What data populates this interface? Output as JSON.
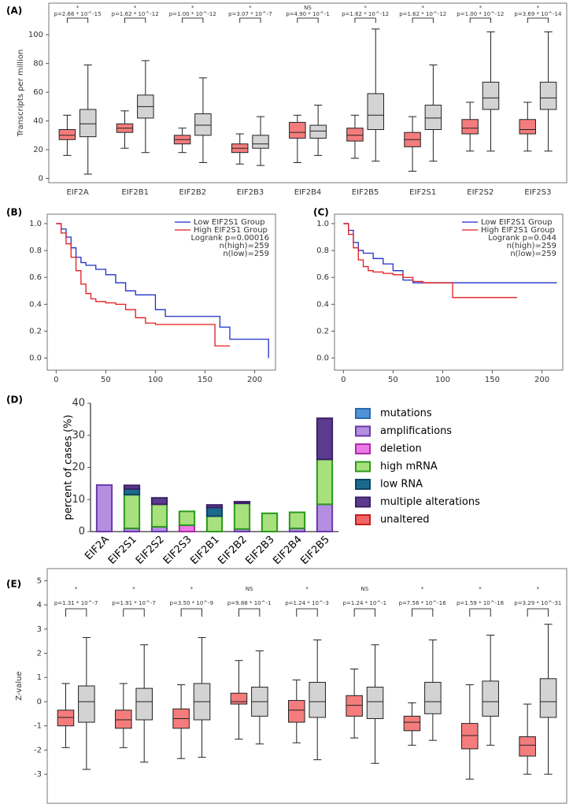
{
  "chart_data": [
    {
      "type": "box",
      "panel": "(A)",
      "ylabel": "Transcripts per million",
      "categories": [
        "EIF2A",
        "EIF2B1",
        "EIF2B2",
        "EIF2B3",
        "EIF2B4",
        "EIF2B5",
        "EIF2S1",
        "EIF2S2",
        "EIF2S3"
      ],
      "annotations": [
        "p=2.66 * 10^-15",
        "p=1.62 * 10^-12",
        "p=1.00 * 10^-12",
        "p=3.07 * 10^-7",
        "p=4.90 * 10^-1",
        "p=1.62 * 10^-12",
        "p=1.62 * 10^-12",
        "p=1.00 * 10^-12",
        "p=3.69 * 10^-14"
      ],
      "significance": [
        "*",
        "*",
        "*",
        "*",
        "NS",
        "*",
        "*",
        "*",
        "*"
      ],
      "series": [
        {
          "color": "#f47c7c",
          "min": [
            16,
            21,
            18,
            10,
            11,
            14,
            5,
            19,
            19
          ],
          "q1": [
            27,
            32,
            24,
            18,
            28,
            26,
            22,
            31,
            31
          ],
          "median": [
            30,
            35,
            27,
            21,
            32,
            30,
            27,
            35,
            34
          ],
          "q3": [
            34,
            38,
            30,
            24,
            39,
            35,
            32,
            41,
            41
          ],
          "max": [
            44,
            47,
            35,
            31,
            44,
            44,
            43,
            53,
            53
          ]
        },
        {
          "color": "#d3d3d3",
          "min": [
            3,
            18,
            11,
            9,
            16,
            12,
            12,
            19,
            19
          ],
          "q1": [
            29,
            42,
            30,
            21,
            28,
            34,
            34,
            48,
            48
          ],
          "median": [
            38,
            50,
            37,
            24,
            33,
            44,
            42,
            56,
            56
          ],
          "q3": [
            48,
            58,
            45,
            30,
            37,
            59,
            51,
            67,
            67
          ],
          "max": [
            79,
            82,
            70,
            43,
            51,
            104,
            79,
            102,
            102
          ]
        }
      ],
      "ylim": [
        -3,
        122
      ],
      "yticks": [
        0,
        20,
        40,
        60,
        80,
        100
      ]
    },
    {
      "type": "line",
      "step": true,
      "panel": "(B)",
      "series": [
        {
          "name": "Low EIF2S1 Group",
          "color": "#1f2fc8",
          "x": [
            0,
            5,
            10,
            15,
            20,
            25,
            30,
            40,
            50,
            60,
            70,
            80,
            90,
            100,
            110,
            130,
            160,
            165,
            175,
            213,
            214
          ],
          "values": [
            1,
            0.96,
            0.9,
            0.82,
            0.75,
            0.71,
            0.69,
            0.66,
            0.62,
            0.56,
            0.5,
            0.47,
            0.47,
            0.36,
            0.31,
            0.31,
            0.31,
            0.23,
            0.14,
            0.14,
            0
          ]
        },
        {
          "name": "High EIF2S1 Group",
          "color": "#e41a1c",
          "x": [
            0,
            5,
            10,
            15,
            20,
            25,
            30,
            35,
            40,
            50,
            60,
            70,
            80,
            90,
            100,
            120,
            140,
            155,
            160,
            175
          ],
          "values": [
            1,
            0.93,
            0.85,
            0.75,
            0.65,
            0.55,
            0.48,
            0.44,
            0.42,
            0.41,
            0.4,
            0.36,
            0.3,
            0.26,
            0.25,
            0.25,
            0.25,
            0.25,
            0.09,
            0.09
          ]
        }
      ],
      "logrank": "Logrank p=0.00016",
      "n_high": "n(high)=259",
      "n_low": "n(low)=259",
      "xlim": [
        -9,
        221
      ],
      "xticks": [
        0,
        50,
        100,
        150,
        200
      ],
      "ylim": [
        -0.09,
        1.07
      ],
      "yticks": [
        {
          "value": 0,
          "label": "0.0"
        },
        0.2,
        0.4,
        0.6,
        0.8,
        {
          "value": 1,
          "label": "1.0"
        }
      ]
    },
    {
      "type": "line",
      "step": true,
      "panel": "(C)",
      "series": [
        {
          "name": "Low EIF2S1 Group",
          "color": "#1f2fc8",
          "x": [
            0,
            5,
            10,
            15,
            20,
            30,
            40,
            50,
            60,
            70,
            80,
            215
          ],
          "values": [
            1,
            0.95,
            0.86,
            0.8,
            0.78,
            0.74,
            0.7,
            0.65,
            0.58,
            0.56,
            0.56,
            0.56
          ]
        },
        {
          "name": "High EIF2S1 Group",
          "color": "#e41a1c",
          "x": [
            0,
            5,
            10,
            15,
            20,
            25,
            30,
            40,
            50,
            60,
            70,
            80,
            100,
            110,
            175
          ],
          "values": [
            1,
            0.92,
            0.82,
            0.73,
            0.68,
            0.65,
            0.64,
            0.63,
            0.62,
            0.6,
            0.57,
            0.56,
            0.56,
            0.45,
            0.45
          ]
        }
      ],
      "logrank": "Logrank p=0.044",
      "n_high": "n(high)=259",
      "n_low": "n(low)=259",
      "xlim": [
        -9,
        221
      ],
      "xticks": [
        0,
        50,
        100,
        150,
        200
      ],
      "ylim": [
        -0.09,
        1.07
      ],
      "yticks": [
        {
          "value": 0,
          "label": "0.0"
        },
        0.2,
        0.4,
        0.6,
        0.8,
        {
          "value": 1,
          "label": "1.0"
        }
      ]
    },
    {
      "type": "bar",
      "stacked": true,
      "panel": "(D)",
      "ylabel": "percent of cases (%)",
      "categories": [
        "EIF2A",
        "EIF2S1",
        "EIF2S2",
        "EIF2S3",
        "EIF2B1",
        "EIF2B2",
        "EIF2B3",
        "EIF2B4",
        "EIF2B5"
      ],
      "series": [
        {
          "name": "mutations",
          "color": "#4f93d8",
          "edge_color": "#2a6aa8",
          "values": [
            0,
            0,
            0,
            0,
            0,
            0,
            0,
            0,
            0
          ]
        },
        {
          "name": "amplifications",
          "color": "#b48ee0",
          "edge_color": "#6a3aa8",
          "values": [
            14.5,
            1,
            1.5,
            0,
            0,
            0.8,
            0,
            1,
            8.5
          ]
        },
        {
          "name": "deletion",
          "color": "#ea7ae6",
          "edge_color": "#b02aa8",
          "values": [
            0,
            0,
            0,
            2,
            0,
            0,
            0,
            0,
            0
          ]
        },
        {
          "name": "high mRNA",
          "color": "#a8e07e",
          "edge_color": "#2a9a1a",
          "values": [
            0,
            10.5,
            7,
            4.3,
            4.8,
            8,
            5.7,
            5,
            14
          ]
        },
        {
          "name": "low RNA",
          "color": "#1b6a8e",
          "edge_color": "#0e4460",
          "values": [
            0,
            1.8,
            0,
            0,
            2.7,
            0,
            0,
            0,
            0
          ]
        },
        {
          "name": "multiple alterations",
          "color": "#5c3b8e",
          "edge_color": "#3a2066",
          "values": [
            0,
            1.1,
            2,
            0,
            0.8,
            0.5,
            0,
            0,
            12.8
          ]
        },
        {
          "name": "unaltered",
          "color": "#f26565",
          "edge_color": "#c02020",
          "values": [
            0,
            0,
            0,
            0,
            0,
            0,
            0,
            0,
            0
          ]
        }
      ],
      "ylim": [
        0,
        40
      ],
      "yticks": [
        0,
        10,
        20,
        30,
        40
      ]
    },
    {
      "type": "box",
      "panel": "(E)",
      "ylabel": "Z-value",
      "categories": [
        "EIF2A",
        "EIF2B1",
        "EIF2B2",
        "EIF2B3",
        "EIF2B4",
        "EIF2B5",
        "EIF2S1",
        "EIF2S2",
        "EIF2S3"
      ],
      "annotations": [
        "p=1.31 * 10^-7",
        "p=1.91 * 10^-7",
        "p=3.50 * 10^-9",
        "p=9.88 * 10^-1",
        "p=1.24 * 10^-3",
        "p=1.24 * 10^-1",
        "p=7.56 * 10^-16",
        "p=1.59 * 10^-18",
        "p=3.29 * 10^-31"
      ],
      "significance": [
        "*",
        "*",
        "*",
        "NS",
        "*",
        "NS",
        "*",
        "*",
        "*"
      ],
      "series": [
        {
          "color": "#f47c7c",
          "min": [
            -1.9,
            -1.9,
            -2.35,
            -1.55,
            -1.7,
            -1.5,
            -1.8,
            -3.2,
            -3.0
          ],
          "q1": [
            -1.0,
            -1.1,
            -1.1,
            -0.1,
            -0.85,
            -0.6,
            -1.2,
            -1.95,
            -2.25
          ],
          "median": [
            -0.65,
            -0.75,
            -0.7,
            0,
            -0.35,
            -0.15,
            -0.85,
            -1.4,
            -1.8
          ],
          "q3": [
            -0.35,
            -0.35,
            -0.3,
            0.35,
            0.05,
            0.25,
            -0.6,
            -0.9,
            -1.45
          ],
          "max": [
            0.75,
            0.75,
            0.7,
            1.7,
            0.9,
            1.35,
            -0.05,
            0.7,
            -0.1
          ]
        },
        {
          "color": "#d3d3d3",
          "min": [
            -2.8,
            -2.5,
            -2.3,
            -1.75,
            -2.4,
            -2.55,
            -1.6,
            -1.8,
            -3.0
          ],
          "q1": [
            -0.85,
            -0.75,
            -0.75,
            -0.6,
            -0.65,
            -0.7,
            -0.5,
            -0.6,
            -0.65
          ],
          "median": [
            0,
            0,
            0,
            0,
            0,
            0,
            0,
            0,
            0
          ],
          "q3": [
            0.65,
            0.55,
            0.75,
            0.6,
            0.8,
            0.6,
            0.8,
            0.85,
            0.95
          ],
          "max": [
            2.65,
            2.35,
            2.65,
            2.1,
            2.55,
            2.35,
            2.55,
            2.75,
            3.2
          ]
        }
      ],
      "ylim": [
        -4.2,
        5.5
      ],
      "yticks": [
        -3,
        -2,
        -1,
        0,
        1,
        2,
        3,
        4,
        5
      ]
    }
  ]
}
